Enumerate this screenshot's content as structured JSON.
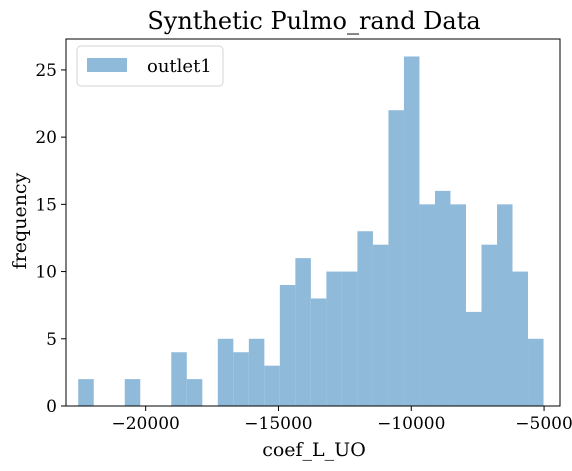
{
  "chart_data": {
    "type": "bar",
    "title": "Synthetic Pulmo_rand Data",
    "xlabel": "coef_L_UO",
    "ylabel": "frequency",
    "xlim": [
      -23000,
      -4400
    ],
    "ylim": [
      0,
      27.3
    ],
    "xticks": [
      -20000,
      -15000,
      -10000,
      -5000
    ],
    "xtick_labels": [
      "−20000",
      "−15000",
      "−10000",
      "−5000"
    ],
    "yticks": [
      0,
      5,
      10,
      15,
      20,
      25
    ],
    "ytick_labels": [
      "0",
      "5",
      "10",
      "15",
      "20",
      "25"
    ],
    "grid": false,
    "legend_position": "top-left",
    "bin_start": -22540,
    "bin_width": 584,
    "series": [
      {
        "name": "outlet1",
        "color": "#8fbad9",
        "counts": [
          2,
          0,
          0,
          2,
          0,
          0,
          4,
          2,
          0,
          5,
          4,
          5,
          3,
          9,
          11,
          8,
          10,
          10,
          13,
          12,
          22,
          26,
          15,
          16,
          15,
          7,
          12,
          15,
          10,
          5
        ]
      }
    ]
  }
}
